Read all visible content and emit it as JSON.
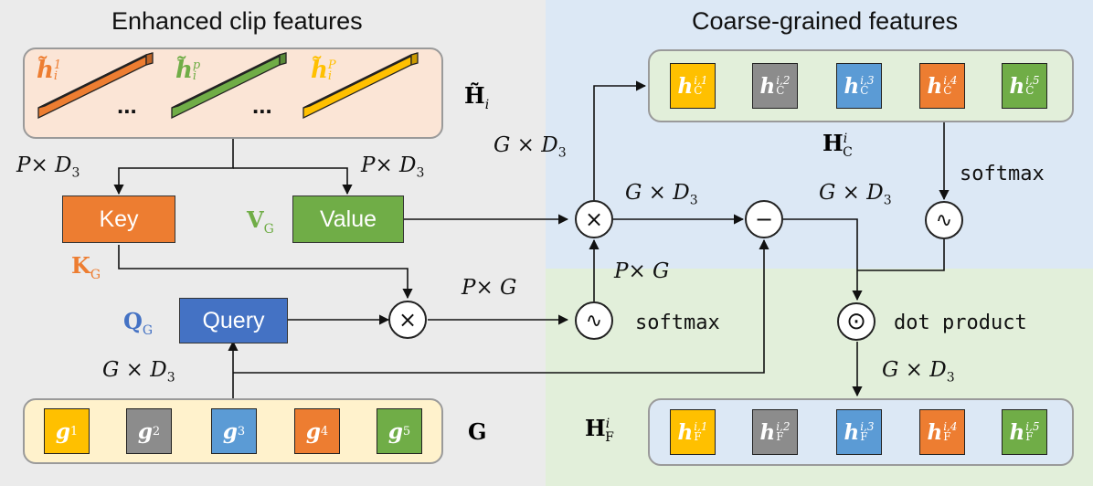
{
  "headings": {
    "left": "Enhanced clip features",
    "right": "Coarse-grained features"
  },
  "colors": {
    "orange": "#ed7d31",
    "green": "#70ad47",
    "gold": "#ffc000",
    "gray": "#8c8c8c",
    "blue": "#5b9bd5",
    "query_blue": "#4472c4",
    "label_blue": "#4472c4"
  },
  "blocks": {
    "key": "Key",
    "value": "Value",
    "query": "Query"
  },
  "symbols": {
    "clip_features": "H̃",
    "clip_features_sub": "i",
    "coarse_features": "H",
    "coarse_features_sup": "i",
    "coarse_features_sub": "C",
    "fine_features": "H",
    "fine_features_sup": "i",
    "fine_features_sub": "F",
    "group_set": "G",
    "key_label": "K",
    "key_label_sub": "G",
    "value_label": "V",
    "value_label_sub": "G",
    "query_label": "Q",
    "query_label_sub": "G"
  },
  "clip_vectors": [
    {
      "base": "h̃",
      "sub": "i",
      "sup": "1",
      "color": "#ed7d31"
    },
    {
      "base": "h̃",
      "sub": "i",
      "sup": "p",
      "color": "#70ad47"
    },
    {
      "base": "h̃",
      "sub": "i",
      "sup": "P",
      "color": "#ffc000"
    }
  ],
  "ellipsis": "...",
  "group_tokens": [
    {
      "base": "g",
      "sub": "1",
      "color": "#ffc000"
    },
    {
      "base": "g",
      "sub": "2",
      "color": "#8c8c8c"
    },
    {
      "base": "g",
      "sub": "3",
      "color": "#5b9bd5"
    },
    {
      "base": "g",
      "sub": "4",
      "color": "#ed7d31"
    },
    {
      "base": "g",
      "sub": "5",
      "color": "#70ad47"
    }
  ],
  "coarse_tokens": [
    {
      "base": "h",
      "sup": "i,1",
      "sub": "C",
      "color": "#ffc000"
    },
    {
      "base": "h",
      "sup": "i,2",
      "sub": "C",
      "color": "#8c8c8c"
    },
    {
      "base": "h",
      "sup": "i,3",
      "sub": "C",
      "color": "#5b9bd5"
    },
    {
      "base": "h",
      "sup": "i,4",
      "sub": "C",
      "color": "#ed7d31"
    },
    {
      "base": "h",
      "sup": "i,5",
      "sub": "C",
      "color": "#70ad47"
    }
  ],
  "fine_tokens": [
    {
      "base": "h",
      "sup": "i,1",
      "sub": "F",
      "color": "#ffc000"
    },
    {
      "base": "h",
      "sup": "i,2",
      "sub": "F",
      "color": "#8c8c8c"
    },
    {
      "base": "h",
      "sup": "i,3",
      "sub": "F",
      "color": "#5b9bd5"
    },
    {
      "base": "h",
      "sup": "i,4",
      "sub": "F",
      "color": "#ed7d31"
    },
    {
      "base": "h",
      "sup": "i,5",
      "sub": "F",
      "color": "#70ad47"
    }
  ],
  "operators": {
    "multiply": "×",
    "minus": "−",
    "dot": "⊙",
    "softmax_glyph": "∿"
  },
  "dims": {
    "pd3": "P× D",
    "pd3_sub": "3",
    "gd3": "G × D",
    "gd3_sub": "3",
    "pg": "P× G"
  },
  "texts": {
    "softmax": "softmax",
    "dot_product": "dot product"
  }
}
